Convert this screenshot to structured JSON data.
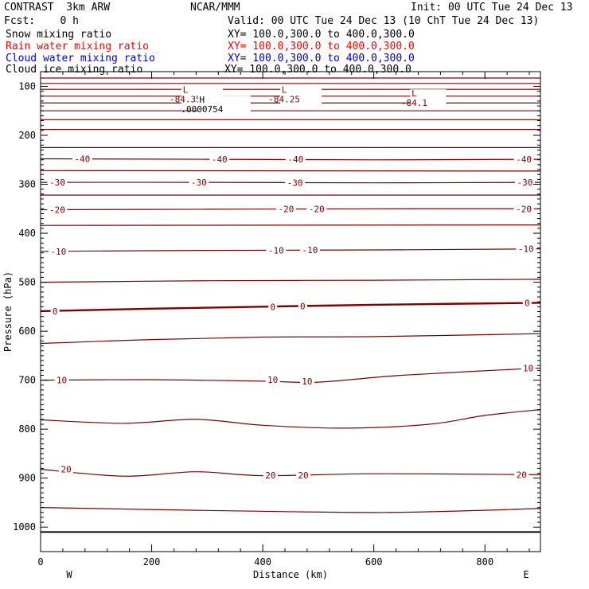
{
  "header": {
    "model": "CONTRAST  3km ARW",
    "center": "NCAR/MMM",
    "init": "Init: 00 UTC Tue 24 Dec 13",
    "fcst": "Fcst:    0 h",
    "valid": "Valid: 00 UTC Tue 24 Dec 13 (10 ChT Tue 24 Dec 13)"
  },
  "fields": [
    {
      "name": "Snow mixing ratio",
      "xy": "XY= 100.0,300.0 to 400.0,300.0",
      "color": "#000000"
    },
    {
      "name": "Rain water mixing ratio",
      "xy": "XY= 100.0,300.0 to 400.0,300.0",
      "color": "#ff0000"
    },
    {
      "name": "Cloud water mixing ratio",
      "xy": "XY= 100.0,300.0 to 400.0,300.0",
      "color": "#0000cc"
    },
    {
      "name": "Cloud ice mixing ratio",
      "xy": "XY= 100.0,300.0 to 400.0,300.0",
      "color": "#000000"
    }
  ],
  "chart_data": {
    "type": "line",
    "xlabel": "Distance (km)",
    "ylabel": "Pressure (hPa)",
    "xlim": [
      0,
      900
    ],
    "ylim": [
      1050,
      70
    ],
    "x_ticks": [
      "0",
      "200",
      "400",
      "600",
      "800"
    ],
    "y_ticks": [
      "100",
      "200",
      "300",
      "400",
      "500",
      "600",
      "700",
      "800",
      "900",
      "1000"
    ],
    "x_ends": {
      "left": "W",
      "right": "E"
    },
    "contour_color": "#800000",
    "contours": [
      {
        "level": "",
        "points": [
          [
            0,
            83
          ],
          [
            900,
            83
          ]
        ]
      },
      {
        "level": "",
        "points": [
          [
            0,
            94
          ],
          [
            900,
            94
          ]
        ]
      },
      {
        "level": "",
        "points": [
          [
            0,
            106
          ],
          [
            900,
            106
          ]
        ]
      },
      {
        "level": "",
        "points": [
          [
            0,
            120
          ],
          [
            900,
            120
          ]
        ]
      },
      {
        "level": "",
        "points": [
          [
            0,
            134
          ],
          [
            900,
            134
          ]
        ]
      },
      {
        "level": "",
        "points": [
          [
            0,
            150
          ],
          [
            900,
            150
          ]
        ]
      },
      {
        "level": "",
        "points": [
          [
            0,
            168
          ],
          [
            900,
            168
          ]
        ]
      },
      {
        "level": "",
        "points": [
          [
            0,
            188
          ],
          [
            900,
            188
          ]
        ]
      },
      {
        "level": "",
        "points": [
          [
            0,
            225
          ],
          [
            900,
            225
          ]
        ]
      },
      {
        "level": "-40",
        "points": [
          [
            0,
            248
          ],
          [
            300,
            249
          ],
          [
            600,
            250
          ],
          [
            900,
            249
          ]
        ]
      },
      {
        "level": "",
        "points": [
          [
            0,
            272
          ],
          [
            900,
            273
          ]
        ]
      },
      {
        "level": "-30",
        "points": [
          [
            0,
            296
          ],
          [
            300,
            296
          ],
          [
            600,
            297
          ],
          [
            900,
            296
          ]
        ]
      },
      {
        "level": "",
        "points": [
          [
            0,
            322
          ],
          [
            900,
            322
          ]
        ]
      },
      {
        "level": "-20",
        "points": [
          [
            0,
            352
          ],
          [
            300,
            351
          ],
          [
            600,
            350
          ],
          [
            900,
            350
          ]
        ]
      },
      {
        "level": "",
        "points": [
          [
            0,
            384
          ],
          [
            900,
            383
          ]
        ]
      },
      {
        "level": "-10",
        "points": [
          [
            0,
            437
          ],
          [
            300,
            435
          ],
          [
            600,
            434
          ],
          [
            900,
            432
          ]
        ]
      },
      {
        "level": "",
        "points": [
          [
            0,
            500
          ],
          [
            300,
            497
          ],
          [
            600,
            496
          ],
          [
            900,
            494
          ]
        ]
      },
      {
        "level": "0",
        "points": [
          [
            0,
            559
          ],
          [
            200,
            554
          ],
          [
            400,
            550
          ],
          [
            600,
            546
          ],
          [
            900,
            542
          ]
        ]
      },
      {
        "level": "",
        "points": [
          [
            0,
            625
          ],
          [
            200,
            617
          ],
          [
            400,
            612
          ],
          [
            600,
            611
          ],
          [
            900,
            605
          ]
        ]
      },
      {
        "level": "10",
        "points": [
          [
            0,
            700
          ],
          [
            200,
            699
          ],
          [
            400,
            702
          ],
          [
            500,
            704
          ],
          [
            650,
            690
          ],
          [
            900,
            675
          ]
        ]
      },
      {
        "level": "",
        "points": [
          [
            0,
            781
          ],
          [
            150,
            788
          ],
          [
            280,
            780
          ],
          [
            400,
            792
          ],
          [
            550,
            798
          ],
          [
            700,
            790
          ],
          [
            800,
            772
          ],
          [
            900,
            760
          ]
        ]
      },
      {
        "level": "20",
        "points": [
          [
            0,
            882
          ],
          [
            150,
            896
          ],
          [
            280,
            887
          ],
          [
            400,
            895
          ],
          [
            600,
            891
          ],
          [
            900,
            893
          ]
        ]
      },
      {
        "level": "",
        "points": [
          [
            0,
            960
          ],
          [
            300,
            966
          ],
          [
            620,
            970
          ],
          [
            900,
            962
          ]
        ]
      }
    ],
    "ground_level": 1010,
    "thick_contour": "0",
    "contour_labels": [
      {
        "text": "-40",
        "x": 75,
        "p": 248
      },
      {
        "text": "-40",
        "x": 322,
        "p": 249
      },
      {
        "text": "-40",
        "x": 459,
        "p": 249
      },
      {
        "text": "-40",
        "x": 870,
        "p": 249
      },
      {
        "text": "-30",
        "x": 30,
        "p": 296
      },
      {
        "text": "-30",
        "x": 285,
        "p": 296
      },
      {
        "text": "-30",
        "x": 458,
        "p": 297
      },
      {
        "text": "-30",
        "x": 872,
        "p": 296
      },
      {
        "text": "-20",
        "x": 30,
        "p": 352
      },
      {
        "text": "-20",
        "x": 442,
        "p": 350
      },
      {
        "text": "-20",
        "x": 497,
        "p": 350
      },
      {
        "text": "-20",
        "x": 870,
        "p": 350
      },
      {
        "text": "-10",
        "x": 32,
        "p": 437
      },
      {
        "text": "-10",
        "x": 424,
        "p": 435
      },
      {
        "text": "-10",
        "x": 485,
        "p": 434
      },
      {
        "text": "-10",
        "x": 874,
        "p": 432
      },
      {
        "text": "0",
        "x": 26,
        "p": 559
      },
      {
        "text": "0",
        "x": 418,
        "p": 550
      },
      {
        "text": "0",
        "x": 472,
        "p": 549
      },
      {
        "text": "0",
        "x": 876,
        "p": 542
      },
      {
        "text": "10",
        "x": 38,
        "p": 700
      },
      {
        "text": "10",
        "x": 418,
        "p": 699
      },
      {
        "text": "10",
        "x": 480,
        "p": 702
      },
      {
        "text": "10",
        "x": 878,
        "p": 675
      },
      {
        "text": "20",
        "x": 46,
        "p": 882
      },
      {
        "text": "20",
        "x": 414,
        "p": 894
      },
      {
        "text": "20",
        "x": 473,
        "p": 894
      },
      {
        "text": "20",
        "x": 866,
        "p": 893
      }
    ],
    "extrema": [
      {
        "mark": "L",
        "value": "-84.35",
        "x": 265,
        "p": 103
      },
      {
        "mark": "L",
        "value": "-84.25",
        "x": 443,
        "p": 103
      },
      {
        "mark": "L",
        "value": "-84.1",
        "x": 677,
        "p": 111
      },
      {
        "mark": "H",
        "value": ".0000754",
        "x": 295,
        "p": 124
      }
    ]
  }
}
